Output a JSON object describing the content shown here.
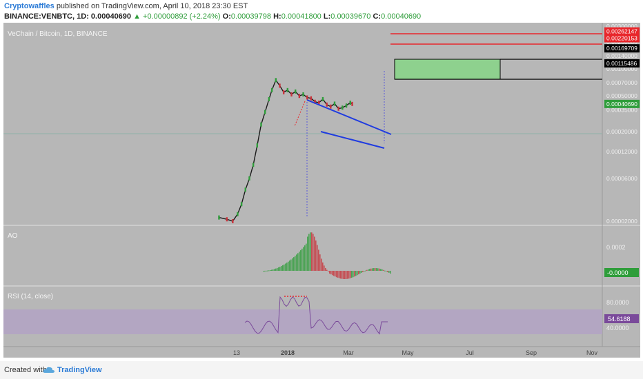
{
  "header": {
    "author": "Cryptowaffles",
    "published": "published on TradingView.com, April 10, 2018 23:30 EST",
    "symbol": "BINANCE:VENBTC, 1D",
    "price": "0.00040690",
    "change": "▲ +0.00000892 (+2.24%)",
    "o_label": "O:",
    "o_value": "0.00039798",
    "h_label": "H:",
    "h_value": "0.00041800",
    "l_label": "L:",
    "l_value": "0.00039670",
    "c_label": "C:",
    "c_value": "0.00040690"
  },
  "footer": {
    "created_with": "Created with",
    "brand": "TradingView"
  },
  "colors": {
    "panel_bg": "#b7b7b7",
    "up": "#2e9d3a",
    "red_line": "#e8262b",
    "channel": "#1f3be0",
    "target_box": "#8ed18e"
  },
  "chart_data": {
    "type": "line",
    "title": "VeChain / Bitcoin, 1D, BINANCE",
    "x_ticks": [
      "13",
      "2018",
      "Mar",
      "May",
      "Jul",
      "Sep",
      "Nov"
    ],
    "y_scale": "log",
    "y_ticks": [
      "0.00300000",
      "0.00200000",
      "0.00140000",
      "0.00100000",
      "0.00070000",
      "0.00050000",
      "0.00035000",
      "0.00020000",
      "0.00012000",
      "0.00006000",
      "0.00002000"
    ],
    "price_labels": [
      {
        "value": "0.00262147",
        "color": "#e8262b"
      },
      {
        "value": "0.00220153",
        "color": "#e8262b"
      },
      {
        "value": "0.00169709",
        "color": "#000000"
      },
      {
        "value": "0.00115486",
        "color": "#000000"
      },
      {
        "value": "0.00040690",
        "color": "#2e9d3a"
      }
    ],
    "series": [
      {
        "x": [
          "2017-11-25",
          "2017-12-03",
          "2017-12-09",
          "2017-12-14",
          "2017-12-18",
          "2017-12-22",
          "2017-12-26",
          "2017-12-30",
          "2018-01-03",
          "2018-01-07",
          "2018-01-11",
          "2018-01-15",
          "2018-01-18",
          "2018-01-22",
          "2018-01-26",
          "2018-01-30",
          "2018-02-03",
          "2018-02-07",
          "2018-02-11",
          "2018-02-15",
          "2018-02-19",
          "2018-02-23",
          "2018-02-27",
          "2018-03-03",
          "2018-03-07",
          "2018-03-11",
          "2018-03-15",
          "2018-03-19",
          "2018-03-23",
          "2018-03-27",
          "2018-03-31",
          "2018-04-04",
          "2018-04-08",
          "2018-04-10"
        ],
        "values": [
          2.2e-05,
          2.1e-05,
          2e-05,
          2.4e-05,
          3.1e-05,
          4.5e-05,
          6e-05,
          8.5e-05,
          0.00014,
          0.00024,
          0.00033,
          0.00046,
          0.00058,
          0.00075,
          0.00065,
          0.00055,
          0.00058,
          0.00052,
          0.00056,
          0.0005,
          0.00052,
          0.00048,
          0.00047,
          0.00043,
          0.00042,
          0.00046,
          0.0004,
          0.00038,
          0.00041,
          0.00036,
          0.00037,
          0.00039,
          0.00042,
          0.0004069
        ]
      }
    ],
    "ao": {
      "label": "AO",
      "y_ticks": [
        "0.0002"
      ],
      "last_value": "-0.0000"
    },
    "rsi": {
      "label": "RSI (14, close)",
      "y_ticks": [
        "80.0000",
        "40.0000"
      ],
      "last_value": "54.6188",
      "band": [
        30,
        70
      ]
    }
  }
}
